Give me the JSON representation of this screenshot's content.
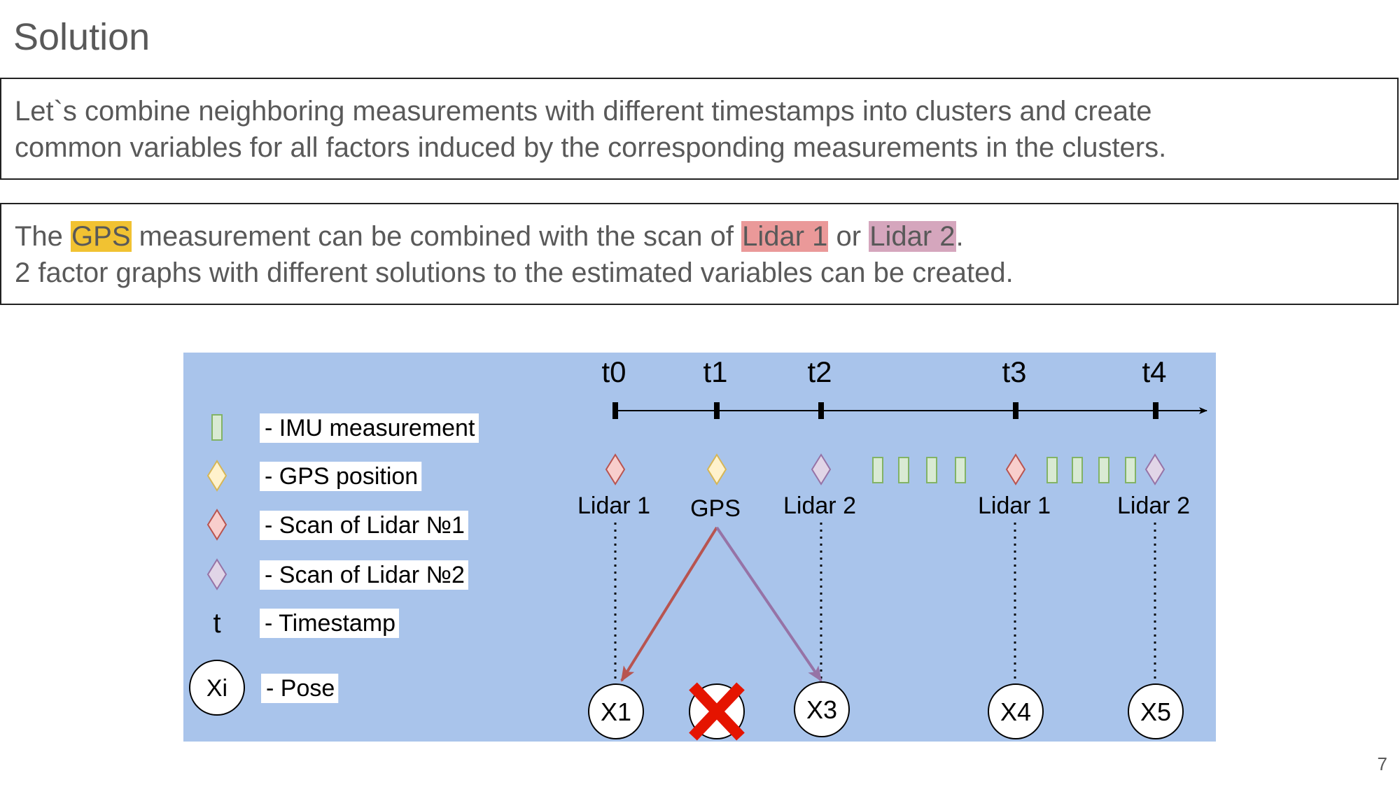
{
  "slide": {
    "title": "Solution",
    "page_number": "7"
  },
  "box1": {
    "line1": "Let`s combine neighboring measurements with different timestamps into clusters and create",
    "line2": "common variables for all factors induced by the corresponding measurements in the clusters."
  },
  "box2": {
    "p1": "The ",
    "gps": "GPS",
    "p2": " measurement can be combined with the scan of ",
    "lidar1": "Lidar 1",
    "p3": " or ",
    "lidar2": "Lidar 2",
    "p4": ".",
    "line2": "2 factor graphs with different solutions to the estimated variables can be created."
  },
  "colors": {
    "gps_highlight": "#f1c232",
    "lidar1_highlight": "#ea9999",
    "lidar2_highlight": "#d5a6bd",
    "diagram_bg": "#a9c4eb",
    "imu_fill": "#d9ead3",
    "imu_stroke": "#82b366",
    "gps_fill": "#fff2cc",
    "gps_stroke": "#d6b656",
    "lidar1_fill": "#f8cecc",
    "lidar1_stroke": "#b85450",
    "lidar2_fill": "#e1d5e7",
    "lidar2_stroke": "#9673a6",
    "arrow_red": "#b85450",
    "arrow_purple": "#9673a6",
    "cross": "#e51400"
  },
  "diagram": {
    "legend": [
      {
        "symbol": "imu",
        "label": "- IMU measurement"
      },
      {
        "symbol": "gps",
        "label": "- GPS position"
      },
      {
        "symbol": "lidar1",
        "label": "- Scan of Lidar №1"
      },
      {
        "symbol": "lidar2",
        "label": "- Scan of Lidar №2"
      },
      {
        "symbol": "timestamp",
        "symbol_text": "t",
        "label": "- Timestamp"
      },
      {
        "symbol": "pose",
        "symbol_text": "Xi",
        "label": "- Pose"
      }
    ],
    "timestamps": [
      "t0",
      "t1",
      "t2",
      "t3",
      "t4"
    ],
    "sensors": [
      "Lidar 1",
      "GPS",
      "Lidar 2",
      "Lidar 1",
      "Lidar 2"
    ],
    "poses": [
      "X1",
      "",
      "X3",
      "X4",
      "X5"
    ],
    "removed_pose_index": 1,
    "imu_groups": [
      4,
      4
    ]
  }
}
